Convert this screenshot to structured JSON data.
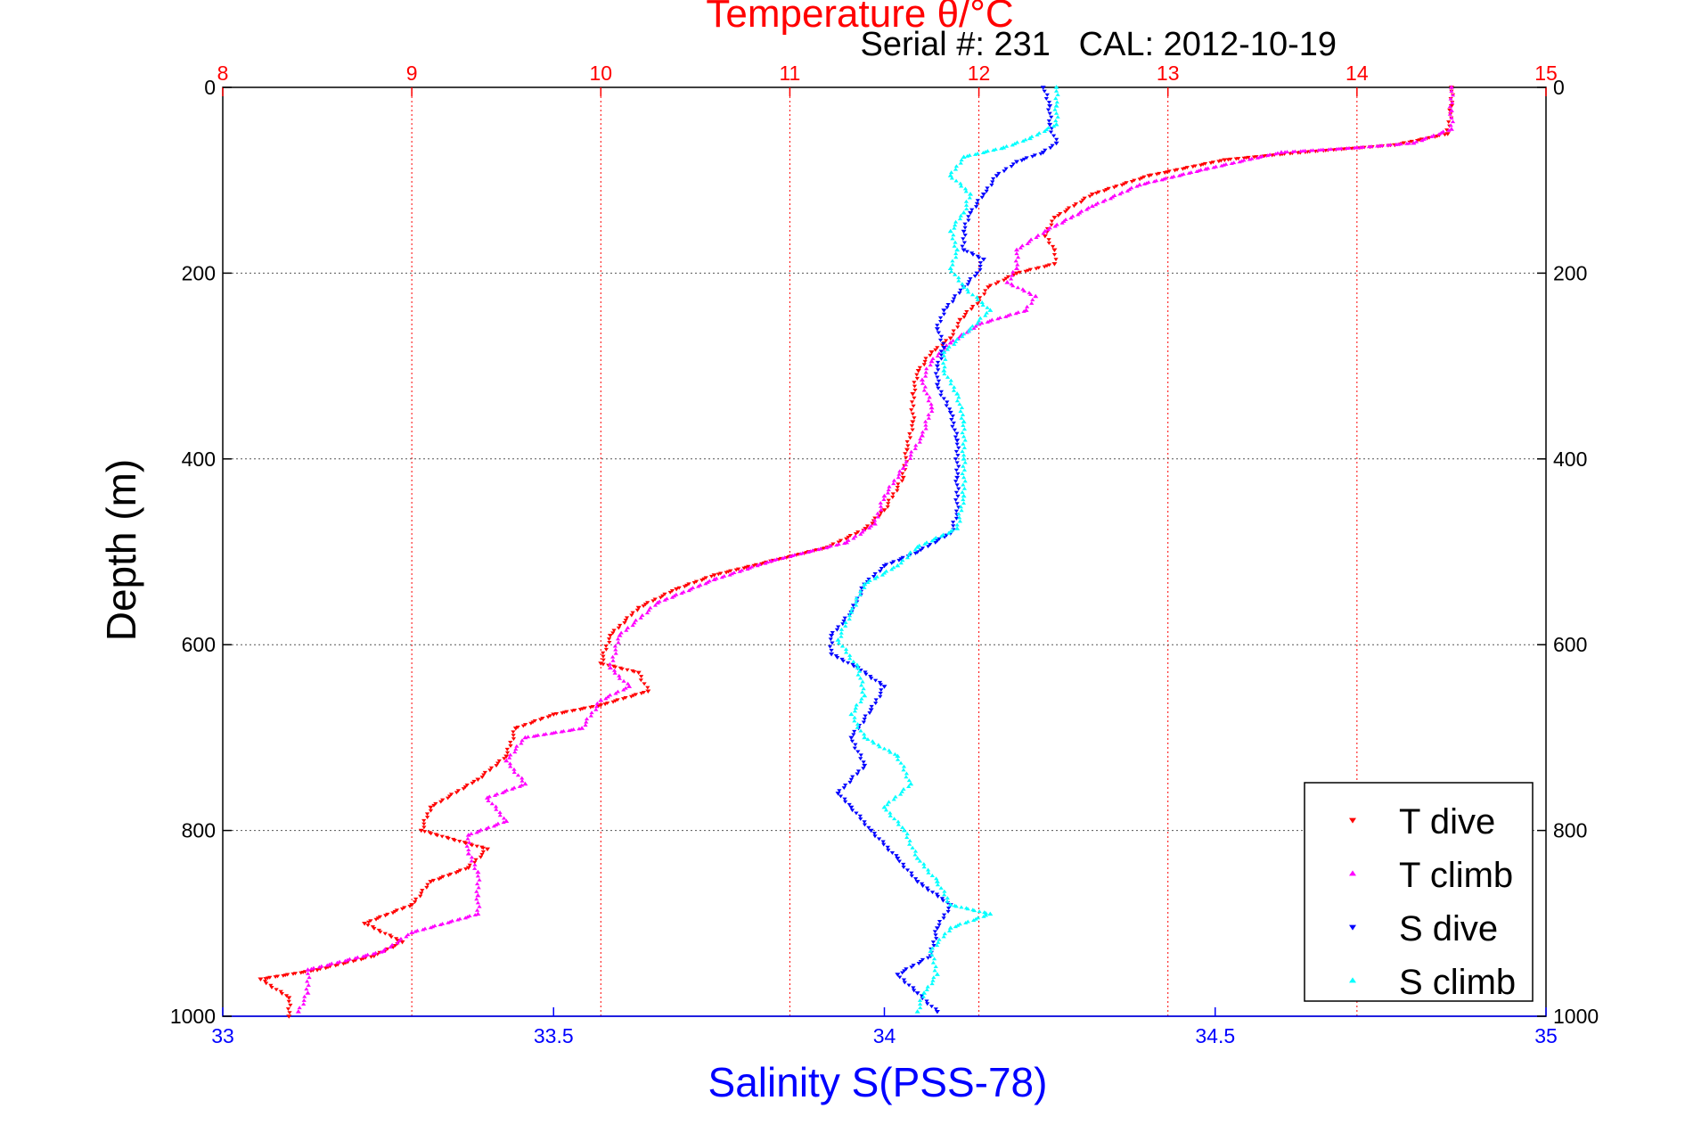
{
  "chart_data": {
    "type": "scatter",
    "title": "Temperature θ/°C",
    "subtitle": "Serial #: 231   CAL: 2012-10-19",
    "ylabel": "Depth (m)",
    "xlabel_bottom": "Salinity S(PSS-78)",
    "y_axis": {
      "range": [
        0,
        1000
      ],
      "reversed": true,
      "ticks": [
        0,
        200,
        400,
        600,
        800,
        1000
      ]
    },
    "x_top_axis": {
      "range": [
        8,
        15
      ],
      "ticks": [
        8,
        9,
        10,
        11,
        12,
        13,
        14,
        15
      ]
    },
    "x_bottom_axis": {
      "range": [
        33,
        35
      ],
      "ticks": [
        33,
        33.5,
        34,
        34.5,
        35
      ]
    },
    "grid": true,
    "legend": {
      "position": "bottom-right"
    },
    "colors": {
      "top_axis": "#ff0000",
      "bottom_axis": "#0000ff",
      "axis": "#000000"
    },
    "series": [
      {
        "name": "T dive",
        "axis": "top",
        "color": "#ff0000",
        "marker": "triangle-down",
        "points": [
          [
            14.5,
            0
          ],
          [
            14.5,
            20
          ],
          [
            14.48,
            50
          ],
          [
            14.2,
            62
          ],
          [
            13.7,
            70
          ],
          [
            13.3,
            78
          ],
          [
            12.9,
            95
          ],
          [
            12.6,
            115
          ],
          [
            12.4,
            140
          ],
          [
            12.35,
            160
          ],
          [
            12.4,
            175
          ],
          [
            12.4,
            190
          ],
          [
            12.2,
            200
          ],
          [
            12.05,
            215
          ],
          [
            12.0,
            230
          ],
          [
            11.9,
            250
          ],
          [
            11.85,
            270
          ],
          [
            11.75,
            285
          ],
          [
            11.68,
            305
          ],
          [
            11.65,
            330
          ],
          [
            11.65,
            360
          ],
          [
            11.62,
            390
          ],
          [
            11.6,
            420
          ],
          [
            11.5,
            455
          ],
          [
            11.4,
            475
          ],
          [
            11.2,
            495
          ],
          [
            10.9,
            510
          ],
          [
            10.6,
            525
          ],
          [
            10.4,
            540
          ],
          [
            10.2,
            560
          ],
          [
            10.05,
            590
          ],
          [
            10.0,
            620
          ],
          [
            10.2,
            630
          ],
          [
            10.25,
            650
          ],
          [
            10.0,
            665
          ],
          [
            9.75,
            675
          ],
          [
            9.55,
            690
          ],
          [
            9.5,
            720
          ],
          [
            9.35,
            745
          ],
          [
            9.1,
            775
          ],
          [
            9.05,
            800
          ],
          [
            9.4,
            820
          ],
          [
            9.3,
            840
          ],
          [
            9.1,
            855
          ],
          [
            9.0,
            880
          ],
          [
            8.75,
            900
          ],
          [
            8.95,
            920
          ],
          [
            8.8,
            935
          ],
          [
            8.5,
            950
          ],
          [
            8.2,
            960
          ],
          [
            8.35,
            980
          ],
          [
            8.35,
            1000
          ]
        ]
      },
      {
        "name": "T climb",
        "axis": "top",
        "color": "#ff00ff",
        "marker": "triangle-up",
        "points": [
          [
            14.5,
            0
          ],
          [
            14.5,
            25
          ],
          [
            14.5,
            45
          ],
          [
            14.3,
            60
          ],
          [
            14.0,
            65
          ],
          [
            13.6,
            70
          ],
          [
            13.2,
            88
          ],
          [
            12.85,
            105
          ],
          [
            12.6,
            128
          ],
          [
            12.35,
            155
          ],
          [
            12.2,
            175
          ],
          [
            12.2,
            195
          ],
          [
            12.15,
            210
          ],
          [
            12.3,
            225
          ],
          [
            12.25,
            240
          ],
          [
            12.0,
            255
          ],
          [
            11.85,
            275
          ],
          [
            11.75,
            295
          ],
          [
            11.7,
            315
          ],
          [
            11.75,
            345
          ],
          [
            11.7,
            375
          ],
          [
            11.6,
            410
          ],
          [
            11.5,
            440
          ],
          [
            11.45,
            470
          ],
          [
            11.3,
            490
          ],
          [
            10.9,
            510
          ],
          [
            10.6,
            530
          ],
          [
            10.3,
            555
          ],
          [
            10.1,
            590
          ],
          [
            10.05,
            625
          ],
          [
            10.15,
            645
          ],
          [
            10.0,
            660
          ],
          [
            9.9,
            690
          ],
          [
            9.6,
            700
          ],
          [
            9.5,
            725
          ],
          [
            9.6,
            750
          ],
          [
            9.4,
            765
          ],
          [
            9.5,
            790
          ],
          [
            9.3,
            805
          ],
          [
            9.3,
            825
          ],
          [
            9.35,
            845
          ],
          [
            9.35,
            870
          ],
          [
            9.35,
            890
          ],
          [
            9.0,
            910
          ],
          [
            8.85,
            930
          ],
          [
            8.45,
            950
          ],
          [
            8.45,
            975
          ],
          [
            8.4,
            995
          ]
        ]
      },
      {
        "name": "S dive",
        "axis": "bottom",
        "color": "#0000ff",
        "marker": "triangle-down",
        "points": [
          [
            34.24,
            0
          ],
          [
            34.25,
            20
          ],
          [
            34.25,
            40
          ],
          [
            34.26,
            60
          ],
          [
            34.24,
            70
          ],
          [
            34.2,
            80
          ],
          [
            34.17,
            95
          ],
          [
            34.15,
            115
          ],
          [
            34.13,
            135
          ],
          [
            34.12,
            155
          ],
          [
            34.12,
            175
          ],
          [
            34.15,
            185
          ],
          [
            34.14,
            200
          ],
          [
            34.12,
            215
          ],
          [
            34.09,
            240
          ],
          [
            34.08,
            260
          ],
          [
            34.09,
            280
          ],
          [
            34.08,
            300
          ],
          [
            34.08,
            320
          ],
          [
            34.1,
            350
          ],
          [
            34.11,
            380
          ],
          [
            34.11,
            420
          ],
          [
            34.11,
            460
          ],
          [
            34.1,
            480
          ],
          [
            34.05,
            500
          ],
          [
            34.0,
            515
          ],
          [
            33.97,
            535
          ],
          [
            33.95,
            565
          ],
          [
            33.92,
            590
          ],
          [
            33.92,
            610
          ],
          [
            33.96,
            625
          ],
          [
            34.0,
            645
          ],
          [
            33.98,
            670
          ],
          [
            33.95,
            700
          ],
          [
            33.97,
            730
          ],
          [
            33.93,
            760
          ],
          [
            33.95,
            775
          ],
          [
            33.98,
            800
          ],
          [
            34.02,
            830
          ],
          [
            34.05,
            855
          ],
          [
            34.1,
            880
          ],
          [
            34.08,
            905
          ],
          [
            34.07,
            935
          ],
          [
            34.02,
            955
          ],
          [
            34.05,
            975
          ],
          [
            34.08,
            995
          ]
        ]
      },
      {
        "name": "S climb",
        "axis": "bottom",
        "color": "#00ffff",
        "marker": "triangle-up",
        "points": [
          [
            34.26,
            0
          ],
          [
            34.26,
            20
          ],
          [
            34.26,
            40
          ],
          [
            34.22,
            55
          ],
          [
            34.18,
            65
          ],
          [
            34.12,
            75
          ],
          [
            34.1,
            95
          ],
          [
            34.13,
            115
          ],
          [
            34.12,
            135
          ],
          [
            34.1,
            155
          ],
          [
            34.11,
            175
          ],
          [
            34.1,
            195
          ],
          [
            34.12,
            215
          ],
          [
            34.16,
            240
          ],
          [
            34.13,
            260
          ],
          [
            34.09,
            285
          ],
          [
            34.09,
            305
          ],
          [
            34.11,
            330
          ],
          [
            34.12,
            360
          ],
          [
            34.12,
            400
          ],
          [
            34.12,
            440
          ],
          [
            34.11,
            475
          ],
          [
            34.05,
            495
          ],
          [
            34.02,
            515
          ],
          [
            33.97,
            535
          ],
          [
            33.95,
            565
          ],
          [
            33.93,
            595
          ],
          [
            33.96,
            625
          ],
          [
            33.97,
            655
          ],
          [
            33.95,
            675
          ],
          [
            33.97,
            700
          ],
          [
            34.02,
            720
          ],
          [
            34.04,
            750
          ],
          [
            34.0,
            775
          ],
          [
            34.03,
            800
          ],
          [
            34.05,
            830
          ],
          [
            34.08,
            855
          ],
          [
            34.1,
            880
          ],
          [
            34.16,
            890
          ],
          [
            34.1,
            905
          ],
          [
            34.07,
            930
          ],
          [
            34.08,
            955
          ],
          [
            34.06,
            975
          ],
          [
            34.05,
            995
          ]
        ]
      }
    ]
  }
}
